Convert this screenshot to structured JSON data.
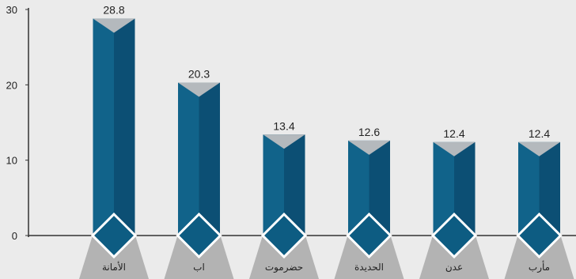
{
  "chart_data": {
    "type": "bar",
    "categories": [
      "الأمانة",
      "اب",
      "حضرموت",
      "الحديدة",
      "عدن",
      "مأرب"
    ],
    "values": [
      28.8,
      20.3,
      13.4,
      12.6,
      12.4,
      12.4
    ],
    "data_labels": [
      "28.8",
      "20.3",
      "13.4",
      "12.6",
      "12.4",
      "12.4"
    ],
    "yticks": [
      "0",
      "10",
      "20",
      "30"
    ],
    "ylim": [
      0,
      30
    ],
    "title": "",
    "xlabel": "",
    "ylabel": "",
    "grid": false,
    "colors": {
      "bar_left": "#11638a",
      "bar_right": "#0c4f74",
      "bar_top": "#b4b9bd",
      "diamond": "#0d5c82",
      "diamond_border": "#ffffff",
      "base": "#b3b3b3",
      "axis": "#333333",
      "background": "#ebebeb"
    }
  }
}
